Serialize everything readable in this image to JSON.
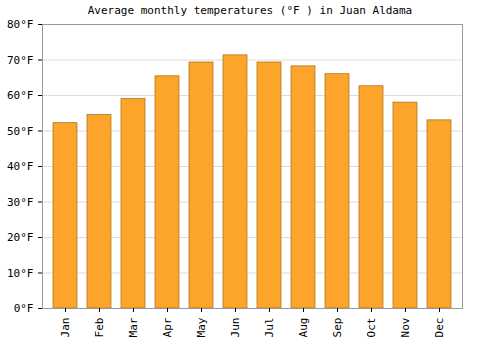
{
  "chart_data": {
    "type": "bar",
    "title": "Average monthly temperatures (°F ) in Juan Aldama",
    "categories": [
      "Jan",
      "Feb",
      "Mar",
      "Apr",
      "May",
      "Jun",
      "Jul",
      "Aug",
      "Sep",
      "Oct",
      "Nov",
      "Dec"
    ],
    "values": [
      52.2,
      54.5,
      59,
      65.4,
      69.3,
      71.3,
      69.3,
      68.2,
      66,
      62.6,
      58,
      53
    ],
    "color": "#fca52a",
    "ylim": [
      0,
      80
    ],
    "yticks": [
      {
        "value": 0,
        "label": "0°F"
      },
      {
        "value": 10,
        "label": "10°F"
      },
      {
        "value": 20,
        "label": "20°F"
      },
      {
        "value": 30,
        "label": "30°F"
      },
      {
        "value": 40,
        "label": "40°F"
      },
      {
        "value": 50,
        "label": "50°F"
      },
      {
        "value": 60,
        "label": "60°F"
      },
      {
        "value": 70,
        "label": "70°F"
      },
      {
        "value": 80,
        "label": "80°F"
      }
    ],
    "grid": true
  }
}
